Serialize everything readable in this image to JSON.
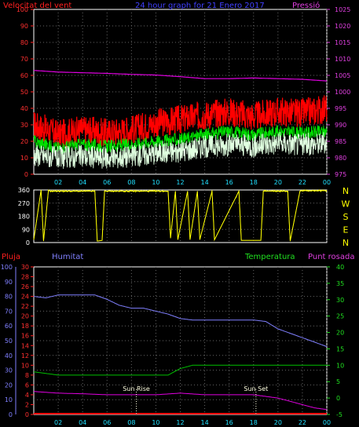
{
  "chart_data": [
    {
      "type": "line",
      "title": "24 hour graph for 21 Enero 2017",
      "left_axis_label": "Velocitat del vent",
      "right_axis_label": "Pressió",
      "x_ticks": [
        "02",
        "04",
        "06",
        "08",
        "10",
        "12",
        "14",
        "16",
        "18",
        "20",
        "22",
        "00"
      ],
      "left_ylim": [
        0,
        100
      ],
      "left_ticks": [
        "0",
        "10",
        "20",
        "30",
        "40",
        "50",
        "60",
        "70",
        "80",
        "90",
        "100"
      ],
      "right_ylim": [
        975,
        1025
      ],
      "right_ticks": [
        "975",
        "980",
        "985",
        "990",
        "995",
        "1000",
        "1005",
        "1010",
        "1015",
        "1020",
        "1025"
      ],
      "grid": true,
      "colors": {
        "gust": "#ff0000",
        "avg": "#00e000",
        "wind": "#e0ffe0",
        "pressure": "#e000e0",
        "title": "#4040ff",
        "left_label": "#ff2020",
        "right_label": "#e040e0"
      },
      "series": [
        {
          "key": "gust",
          "x": [
            0,
            2,
            4,
            6,
            8,
            10,
            12,
            14,
            16,
            18,
            20,
            22,
            24
          ],
          "values": [
            30,
            24,
            27,
            25,
            27,
            31,
            33,
            36,
            38,
            35,
            38,
            37,
            40
          ]
        },
        {
          "key": "avg",
          "x": [
            0,
            2,
            4,
            6,
            8,
            10,
            12,
            14,
            16,
            18,
            20,
            22,
            24
          ],
          "values": [
            20,
            16,
            18,
            17,
            18,
            20,
            21,
            24,
            26,
            24,
            26,
            25,
            26
          ]
        },
        {
          "key": "wind",
          "x": [
            0,
            2,
            4,
            6,
            8,
            10,
            12,
            14,
            16,
            18,
            20,
            22,
            24
          ],
          "values": [
            12,
            10,
            11,
            10,
            11,
            13,
            14,
            17,
            18,
            17,
            19,
            18,
            19
          ]
        },
        {
          "key": "pressure",
          "x": [
            0,
            2,
            4,
            6,
            8,
            10,
            12,
            14,
            16,
            18,
            20,
            22,
            24
          ],
          "values": [
            1006.5,
            1006,
            1005.8,
            1005.6,
            1005.3,
            1005.1,
            1004.6,
            1004,
            1004,
            1004.2,
            1004,
            1003.8,
            1003.3
          ]
        }
      ]
    },
    {
      "type": "line",
      "title": "",
      "right_axis_letters": [
        "N",
        "W",
        "S",
        "E",
        "N"
      ],
      "left_ticks": [
        "0",
        "90",
        "180",
        "270",
        "360"
      ],
      "left_ylim": [
        0,
        360
      ],
      "x_ticks": [
        "02",
        "04",
        "06",
        "08",
        "10",
        "12",
        "14",
        "16",
        "18",
        "20",
        "22",
        "00"
      ],
      "grid": true,
      "colors": {
        "direction": "#ffff00",
        "letters": "#ffff00"
      },
      "series": [
        {
          "key": "direction",
          "x": [
            0,
            0.6,
            0.8,
            1.2,
            1.4,
            5.0,
            5.2,
            5.6,
            5.8,
            11.0,
            11.2,
            11.6,
            11.8,
            12.6,
            12.8,
            13.4,
            13.6,
            14.6,
            14.8,
            16.8,
            17.0,
            18.6,
            18.8,
            20.8,
            21.0,
            21.8,
            22.0,
            24
          ],
          "values": [
            20,
            360,
            10,
            355,
            352,
            352,
            10,
            15,
            352,
            352,
            30,
            352,
            20,
            352,
            20,
            352,
            20,
            352,
            18,
            352,
            15,
            15,
            352,
            352,
            10,
            352,
            355,
            355
          ]
        }
      ]
    },
    {
      "type": "line",
      "title": "",
      "labels": {
        "rain": "Pluja",
        "humidity": "Humitat",
        "temperature": "Temperatura",
        "dewpoint": "Punt rosada"
      },
      "annotations": [
        "Sun Rise",
        "Sun Set"
      ],
      "annotation_x": [
        8.4,
        18.2
      ],
      "x_ticks": [
        "02",
        "04",
        "06",
        "08",
        "10",
        "12",
        "14",
        "16",
        "18",
        "20",
        "22",
        "00"
      ],
      "humidity_ylim": [
        0,
        100
      ],
      "humidity_ticks": [
        "0",
        "10",
        "20",
        "30",
        "40",
        "50",
        "60",
        "70",
        "80",
        "90",
        "100"
      ],
      "rain_ylim": [
        0,
        30
      ],
      "rain_ticks": [
        "0",
        "2",
        "4",
        "6",
        "8",
        "10",
        "12",
        "14",
        "16",
        "18",
        "20",
        "22",
        "24",
        "26",
        "28",
        "30"
      ],
      "temp_ylim": [
        -5,
        40
      ],
      "temp_ticks": [
        "-5",
        "0",
        "5",
        "10",
        "15",
        "20",
        "25",
        "30",
        "35",
        "40"
      ],
      "grid": true,
      "colors": {
        "rain": "#ff0000",
        "humidity": "#8080ff",
        "temperature": "#00c000",
        "dewpoint": "#e000e0",
        "annotation": "#ffffe0"
      },
      "series": [
        {
          "key": "humidity",
          "x": [
            0,
            1,
            2,
            4,
            5,
            6,
            7,
            8,
            9,
            10,
            11,
            12,
            13,
            14,
            16,
            18,
            19,
            20,
            21,
            22,
            23,
            24
          ],
          "values": [
            80,
            79,
            81,
            81,
            81,
            78,
            74,
            72,
            72,
            70,
            68,
            65,
            64,
            64,
            64,
            64,
            63,
            58,
            55,
            52,
            49,
            46
          ]
        },
        {
          "key": "temperature",
          "x": [
            0,
            2,
            3,
            4,
            6,
            8,
            10,
            11,
            12,
            13,
            14,
            16,
            18,
            20,
            22,
            24
          ],
          "values": [
            8,
            7,
            7,
            7,
            7,
            7,
            7,
            7,
            9,
            10,
            10,
            10,
            10,
            10,
            10,
            10
          ]
        },
        {
          "key": "dewpoint",
          "x": [
            0,
            2,
            4,
            6,
            8,
            10,
            12,
            14,
            16,
            18,
            20,
            21,
            22,
            23,
            24
          ],
          "values": [
            2,
            1.5,
            1.3,
            1,
            1,
            1,
            1.5,
            1,
            1,
            1,
            0,
            -1,
            -2,
            -3,
            -3.5
          ]
        },
        {
          "key": "rain",
          "x": [
            0,
            24
          ],
          "values": [
            0,
            0
          ]
        }
      ]
    }
  ]
}
